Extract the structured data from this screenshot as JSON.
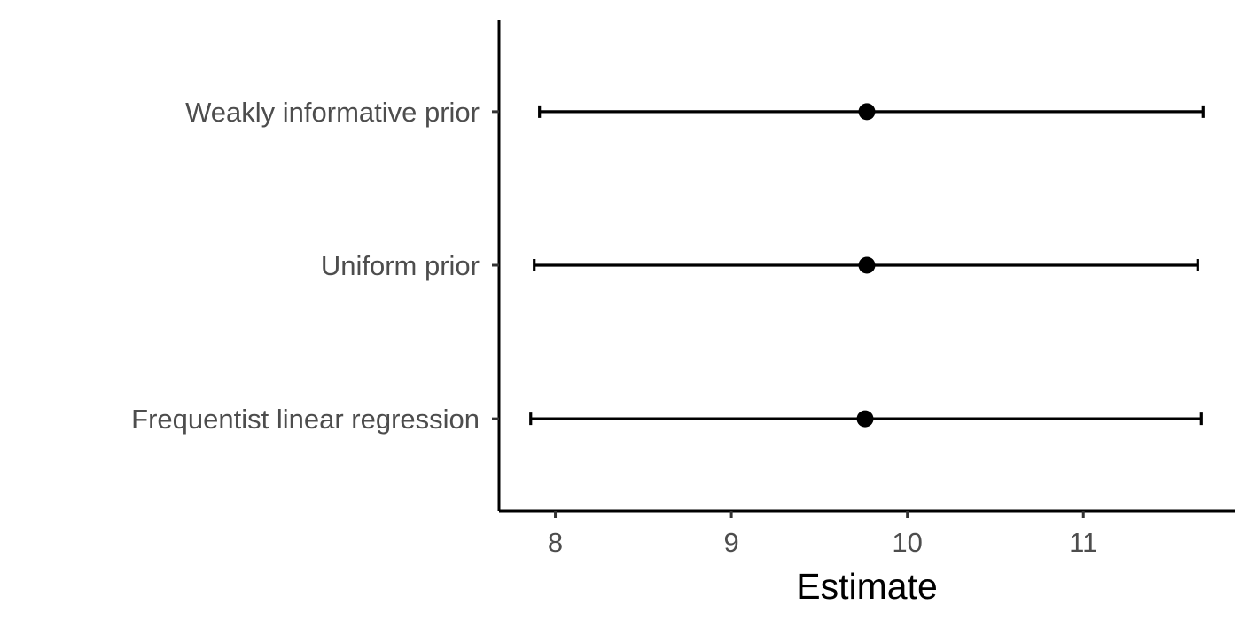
{
  "chart_data": {
    "type": "scatter",
    "subtype": "point-range",
    "title": "",
    "xlabel": "Estimate",
    "ylabel": "",
    "xlim": [
      7.68,
      11.86
    ],
    "x_ticks": [
      8,
      9,
      10,
      11
    ],
    "x_tick_labels": [
      "8",
      "9",
      "10",
      "11"
    ],
    "categories": [
      "Frequentist linear regression",
      "Uniform prior",
      "Weakly informative prior"
    ],
    "points": [
      {
        "category": "Frequentist linear regression",
        "estimate": 9.76,
        "lower": 7.86,
        "upper": 11.67
      },
      {
        "category": "Uniform prior",
        "estimate": 9.77,
        "lower": 7.88,
        "upper": 11.65
      },
      {
        "category": "Weakly informative prior",
        "estimate": 9.77,
        "lower": 7.91,
        "upper": 11.68
      }
    ],
    "grid": false,
    "legend": "none",
    "colors": {
      "marks": "#000000",
      "tick_text": "#4d4d4d",
      "axis": "#000000"
    }
  }
}
